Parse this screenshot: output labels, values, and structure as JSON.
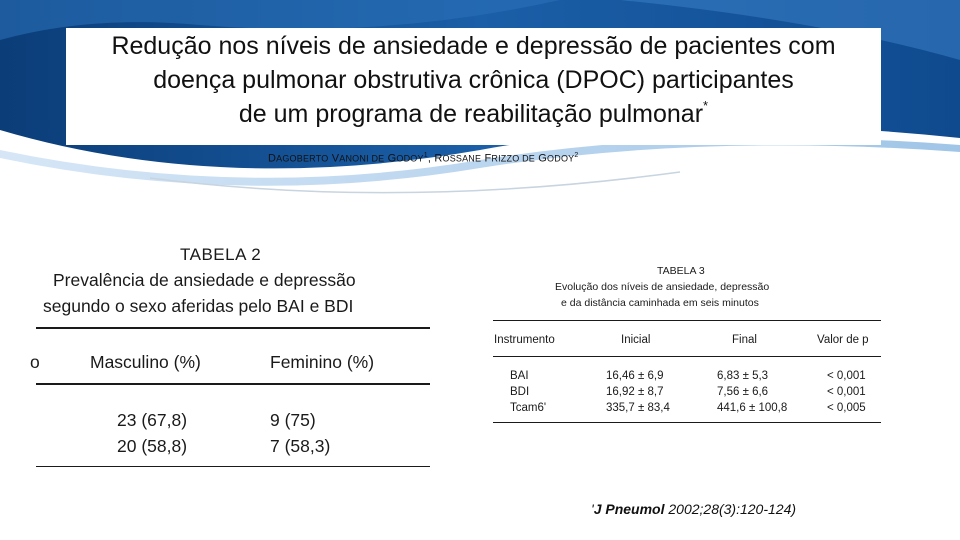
{
  "colors": {
    "accent_dark": "#0b3d78",
    "accent_mid": "#1b5fa8",
    "accent_light": "#7fb0de",
    "text": "#111111"
  },
  "header": {
    "title_line1": "Redução nos níveis de ansiedade e depressão de pacientes com",
    "title_line2": "doença pulmonar obstrutiva crônica (DPOC) participantes",
    "title_line3": "de um programa de reabilitação pulmonar",
    "title_mark": "*",
    "author1_first": "D",
    "author1_rest": "AGOBERTO",
    "author1_mid_first": "V",
    "author1_mid_rest": "ANONI DE",
    "author1_last_first": "G",
    "author1_last_rest": "ODOY",
    "author1_mark": "1",
    "sep": ",",
    "author2_first": "R",
    "author2_rest": "OSSANE",
    "author2_mid_first": "F",
    "author2_mid_rest": "RIZZO DE",
    "author2_last_first": "G",
    "author2_last_rest": "ODOY",
    "author2_mark": "2"
  },
  "table2": {
    "title": "TABELA 2",
    "subtitle_line1": "Prevalência de ansiedade e depressão",
    "subtitle_line2": "segundo o sexo aferidas pelo BAI e BDI",
    "col_fragment": "o",
    "col_masc": "Masculino (%)",
    "col_fem": "Feminino (%)",
    "rows": [
      {
        "masc": "23 (67,8)",
        "fem": "9 (75)"
      },
      {
        "masc": "20 (58,8)",
        "fem": "7 (58,3)"
      }
    ]
  },
  "table3": {
    "title": "TABELA 3",
    "subtitle_line1": "Evolução dos níveis de ansiedade, depressão",
    "subtitle_line2": "e da distância caminhada em seis minutos",
    "headers": [
      "Instrumento",
      "Inicial",
      "Final",
      "Valor de p"
    ],
    "rows": [
      {
        "instr": "BAI",
        "inicial": "16,46 ± 6,9",
        "final": "6,83 ± 5,3",
        "p": "< 0,001"
      },
      {
        "instr": "BDI",
        "inicial": "16,92 ± 8,7",
        "final": "7,56 ± 6,6",
        "p": "< 0,001"
      },
      {
        "instr": "Tcam6'",
        "inicial": "335,7 ± 83,4",
        "final": "441,6 ± 100,8",
        "p": "< 0,005"
      }
    ]
  },
  "citation": {
    "prefix": "'",
    "journal": "J Pneumol",
    "ref": "2002;28(3):120-124)"
  }
}
